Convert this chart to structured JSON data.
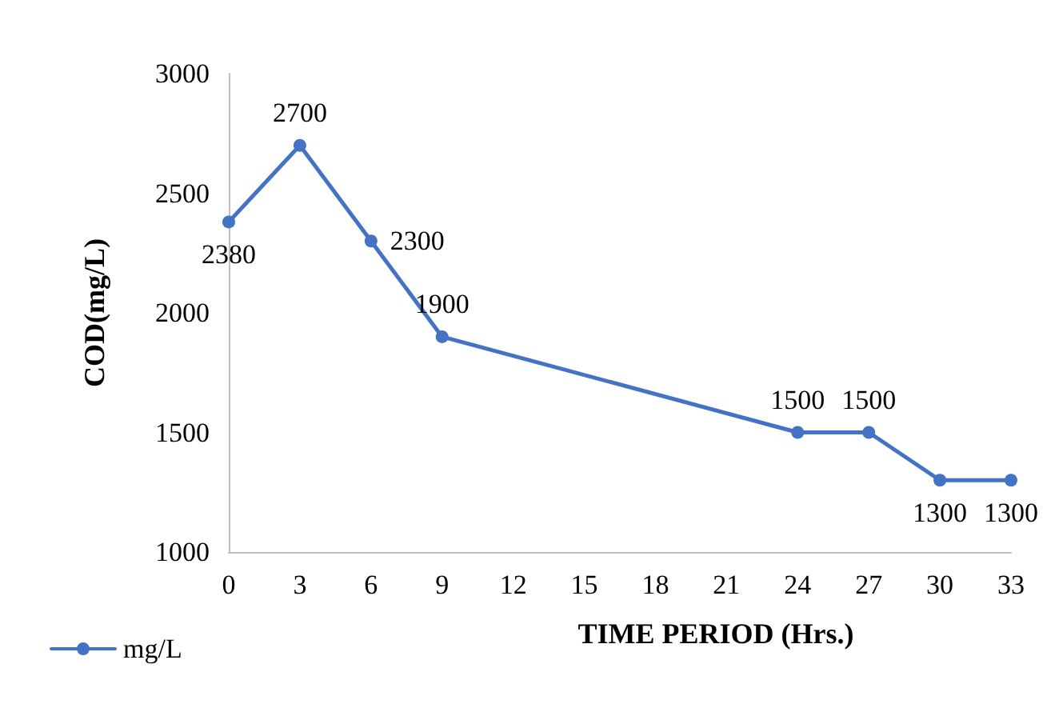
{
  "chart_data": {
    "type": "line",
    "xlabel": "TIME PERIOD (Hrs.)",
    "ylabel": "COD(mg/L)",
    "x": [
      0,
      3,
      6,
      9,
      24,
      27,
      30,
      33
    ],
    "series": [
      {
        "name": "mg/L",
        "color": "#4472c4",
        "values": [
          2380,
          2700,
          2300,
          1900,
          1500,
          1500,
          1300,
          1300
        ]
      }
    ],
    "xlim": [
      0,
      33
    ],
    "xticks": [
      0,
      3,
      6,
      9,
      12,
      15,
      18,
      21,
      24,
      27,
      30,
      33
    ],
    "ylim": [
      1000,
      3000
    ],
    "yticks": [
      1000,
      1500,
      2000,
      2500,
      3000
    ],
    "grid": false,
    "legend": "bottom left",
    "marker": "circle",
    "line_style": "solid",
    "data_labels": true
  }
}
